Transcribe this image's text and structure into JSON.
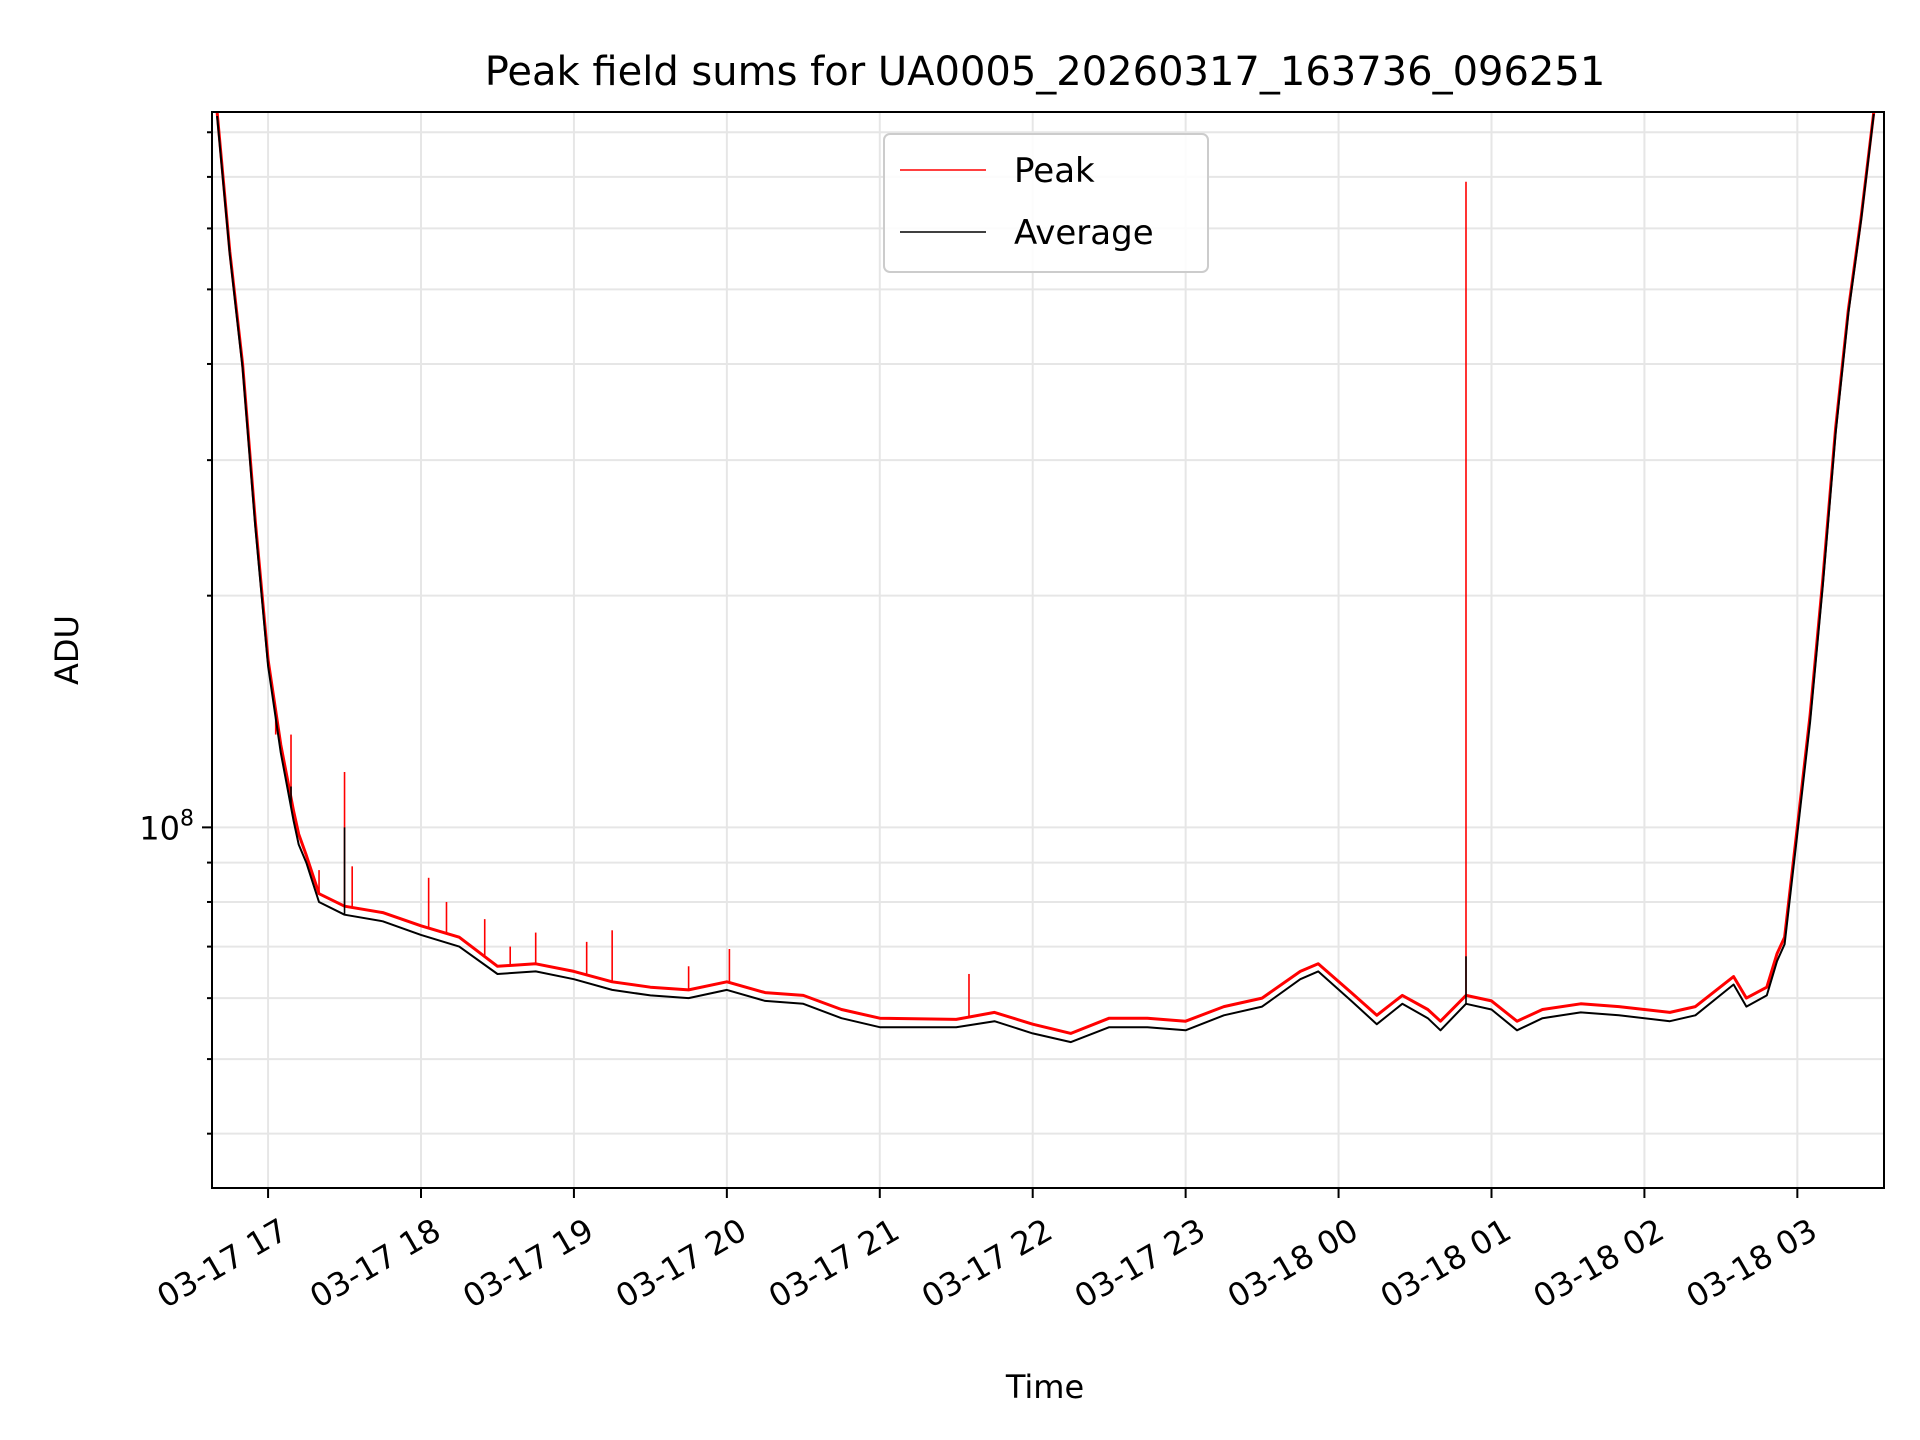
{
  "chart_data": {
    "type": "line",
    "title": "Peak field sums for UA0005_20260317_163736_096251",
    "xlabel": "Time",
    "ylabel": "ADU",
    "y_scale": "log",
    "y_tick_major": {
      "value": 100000000,
      "base": "10",
      "exponent": "8"
    },
    "ylim": [
      34000000,
      850000000
    ],
    "xlim": [
      "2026-03-17 16:38",
      "2026-03-18 03:34"
    ],
    "x_ticks": [
      {
        "t": "2026-03-17 17:00",
        "label": "03-17 17"
      },
      {
        "t": "2026-03-17 18:00",
        "label": "03-17 18"
      },
      {
        "t": "2026-03-17 19:00",
        "label": "03-17 19"
      },
      {
        "t": "2026-03-17 20:00",
        "label": "03-17 20"
      },
      {
        "t": "2026-03-17 21:00",
        "label": "03-17 21"
      },
      {
        "t": "2026-03-17 22:00",
        "label": "03-17 22"
      },
      {
        "t": "2026-03-17 23:00",
        "label": "03-17 23"
      },
      {
        "t": "2026-03-18 00:00",
        "label": "03-18 00"
      },
      {
        "t": "2026-03-18 01:00",
        "label": "03-18 01"
      },
      {
        "t": "2026-03-18 02:00",
        "label": "03-18 02"
      },
      {
        "t": "2026-03-18 03:00",
        "label": "03-18 03"
      }
    ],
    "grid": true,
    "legend_position": "top-center",
    "series": [
      {
        "name": "Peak",
        "color": "#ff0000",
        "points": [
          [
            "2026-03-17 16:40",
            850000000
          ],
          [
            "2026-03-17 16:45",
            560000000
          ],
          [
            "2026-03-17 16:50",
            400000000
          ],
          [
            "2026-03-17 16:55",
            250000000
          ],
          [
            "2026-03-17 17:00",
            165000000
          ],
          [
            "2026-03-17 17:05",
            128000000
          ],
          [
            "2026-03-17 17:10",
            105000000
          ],
          [
            "2026-03-17 17:12",
            98000000
          ],
          [
            "2026-03-17 17:15",
            92000000
          ],
          [
            "2026-03-17 17:20",
            82000000
          ],
          [
            "2026-03-17 17:30",
            79000000
          ],
          [
            "2026-03-17 17:45",
            77500000
          ],
          [
            "2026-03-17 18:00",
            74500000
          ],
          [
            "2026-03-17 18:15",
            72000000
          ],
          [
            "2026-03-17 18:30",
            66000000
          ],
          [
            "2026-03-17 18:45",
            66500000
          ],
          [
            "2026-03-17 19:00",
            65000000
          ],
          [
            "2026-03-17 19:15",
            63000000
          ],
          [
            "2026-03-17 19:30",
            62000000
          ],
          [
            "2026-03-17 19:45",
            61500000
          ],
          [
            "2026-03-17 20:00",
            63000000
          ],
          [
            "2026-03-17 20:15",
            61000000
          ],
          [
            "2026-03-17 20:30",
            60500000
          ],
          [
            "2026-03-17 20:45",
            58000000
          ],
          [
            "2026-03-17 21:00",
            56500000
          ],
          [
            "2026-03-17 21:30",
            56300000
          ],
          [
            "2026-03-17 21:45",
            57500000
          ],
          [
            "2026-03-17 22:00",
            55500000
          ],
          [
            "2026-03-17 22:15",
            54000000
          ],
          [
            "2026-03-17 22:30",
            56500000
          ],
          [
            "2026-03-17 22:45",
            56500000
          ],
          [
            "2026-03-17 23:00",
            56000000
          ],
          [
            "2026-03-17 23:15",
            58500000
          ],
          [
            "2026-03-17 23:30",
            60000000
          ],
          [
            "2026-03-17 23:45",
            65000000
          ],
          [
            "2026-03-17 23:52",
            66500000
          ],
          [
            "2026-03-18 00:05",
            61000000
          ],
          [
            "2026-03-18 00:15",
            57000000
          ],
          [
            "2026-03-18 00:25",
            60500000
          ],
          [
            "2026-03-18 00:35",
            58000000
          ],
          [
            "2026-03-18 00:40",
            56000000
          ],
          [
            "2026-03-18 00:50",
            60500000
          ],
          [
            "2026-03-18 01:00",
            59500000
          ],
          [
            "2026-03-18 01:10",
            56000000
          ],
          [
            "2026-03-18 01:20",
            58000000
          ],
          [
            "2026-03-18 01:35",
            59000000
          ],
          [
            "2026-03-18 01:50",
            58500000
          ],
          [
            "2026-03-18 02:10",
            57500000
          ],
          [
            "2026-03-18 02:20",
            58500000
          ],
          [
            "2026-03-18 02:35",
            64000000
          ],
          [
            "2026-03-18 02:40",
            60000000
          ],
          [
            "2026-03-18 02:48",
            62000000
          ],
          [
            "2026-03-18 02:52",
            68500000
          ],
          [
            "2026-03-18 02:55",
            72000000
          ],
          [
            "2026-03-18 03:00",
            100000000
          ],
          [
            "2026-03-18 03:05",
            140000000
          ],
          [
            "2026-03-18 03:10",
            210000000
          ],
          [
            "2026-03-18 03:15",
            330000000
          ],
          [
            "2026-03-18 03:20",
            470000000
          ],
          [
            "2026-03-18 03:25",
            620000000
          ],
          [
            "2026-03-18 03:30",
            850000000
          ]
        ],
        "spikes": [
          [
            "2026-03-17 17:03",
            132000000
          ],
          [
            "2026-03-17 17:09",
            132000000
          ],
          [
            "2026-03-17 17:20",
            88000000
          ],
          [
            "2026-03-17 17:30",
            118000000
          ],
          [
            "2026-03-17 17:33",
            89000000
          ],
          [
            "2026-03-17 18:03",
            86000000
          ],
          [
            "2026-03-17 18:10",
            80000000
          ],
          [
            "2026-03-17 18:25",
            76000000
          ],
          [
            "2026-03-17 18:35",
            70000000
          ],
          [
            "2026-03-17 18:45",
            73000000
          ],
          [
            "2026-03-17 19:05",
            71000000
          ],
          [
            "2026-03-17 19:15",
            73500000
          ],
          [
            "2026-03-17 19:45",
            66000000
          ],
          [
            "2026-03-17 20:01",
            69500000
          ],
          [
            "2026-03-17 21:35",
            64500000
          ],
          [
            "2026-03-18 00:50",
            690000000
          ]
        ]
      },
      {
        "name": "Average",
        "color": "#000000",
        "points": [
          [
            "2026-03-17 16:40",
            840000000
          ],
          [
            "2026-03-17 16:45",
            555000000
          ],
          [
            "2026-03-17 16:50",
            395000000
          ],
          [
            "2026-03-17 16:55",
            246000000
          ],
          [
            "2026-03-17 17:00",
            162000000
          ],
          [
            "2026-03-17 17:05",
            125000000
          ],
          [
            "2026-03-17 17:10",
            102000000
          ],
          [
            "2026-03-17 17:12",
            95000000
          ],
          [
            "2026-03-17 17:15",
            90000000
          ],
          [
            "2026-03-17 17:20",
            80000000
          ],
          [
            "2026-03-17 17:30",
            77000000
          ],
          [
            "2026-03-17 17:45",
            75500000
          ],
          [
            "2026-03-17 18:00",
            72500000
          ],
          [
            "2026-03-17 18:15",
            70000000
          ],
          [
            "2026-03-17 18:30",
            64500000
          ],
          [
            "2026-03-17 18:45",
            65000000
          ],
          [
            "2026-03-17 19:00",
            63500000
          ],
          [
            "2026-03-17 19:15",
            61500000
          ],
          [
            "2026-03-17 19:30",
            60500000
          ],
          [
            "2026-03-17 19:45",
            60000000
          ],
          [
            "2026-03-17 20:00",
            61500000
          ],
          [
            "2026-03-17 20:15",
            59500000
          ],
          [
            "2026-03-17 20:30",
            59000000
          ],
          [
            "2026-03-17 20:45",
            56500000
          ],
          [
            "2026-03-17 21:00",
            55000000
          ],
          [
            "2026-03-17 21:30",
            55000000
          ],
          [
            "2026-03-17 21:45",
            56000000
          ],
          [
            "2026-03-17 22:00",
            54000000
          ],
          [
            "2026-03-17 22:15",
            52600000
          ],
          [
            "2026-03-17 22:30",
            55000000
          ],
          [
            "2026-03-17 22:45",
            55000000
          ],
          [
            "2026-03-17 23:00",
            54500000
          ],
          [
            "2026-03-17 23:15",
            57000000
          ],
          [
            "2026-03-17 23:30",
            58500000
          ],
          [
            "2026-03-17 23:45",
            63500000
          ],
          [
            "2026-03-17 23:52",
            65000000
          ],
          [
            "2026-03-18 00:05",
            59500000
          ],
          [
            "2026-03-18 00:15",
            55500000
          ],
          [
            "2026-03-18 00:25",
            59000000
          ],
          [
            "2026-03-18 00:35",
            56500000
          ],
          [
            "2026-03-18 00:40",
            54500000
          ],
          [
            "2026-03-18 00:50",
            59000000
          ],
          [
            "2026-03-18 01:00",
            58000000
          ],
          [
            "2026-03-18 01:10",
            54500000
          ],
          [
            "2026-03-18 01:20",
            56500000
          ],
          [
            "2026-03-18 01:35",
            57500000
          ],
          [
            "2026-03-18 01:50",
            57000000
          ],
          [
            "2026-03-18 02:10",
            56000000
          ],
          [
            "2026-03-18 02:20",
            57000000
          ],
          [
            "2026-03-18 02:35",
            62500000
          ],
          [
            "2026-03-18 02:40",
            58500000
          ],
          [
            "2026-03-18 02:48",
            60500000
          ],
          [
            "2026-03-18 02:52",
            67000000
          ],
          [
            "2026-03-18 02:55",
            70500000
          ],
          [
            "2026-03-18 03:00",
            98000000
          ],
          [
            "2026-03-18 03:05",
            137000000
          ],
          [
            "2026-03-18 03:10",
            206000000
          ],
          [
            "2026-03-18 03:15",
            325000000
          ],
          [
            "2026-03-18 03:20",
            465000000
          ],
          [
            "2026-03-18 03:25",
            615000000
          ],
          [
            "2026-03-18 03:30",
            845000000
          ]
        ],
        "spikes": [
          [
            "2026-03-17 17:09",
            113000000
          ],
          [
            "2026-03-17 17:30",
            100000000
          ],
          [
            "2026-03-18 00:50",
            68000000
          ]
        ]
      }
    ]
  }
}
